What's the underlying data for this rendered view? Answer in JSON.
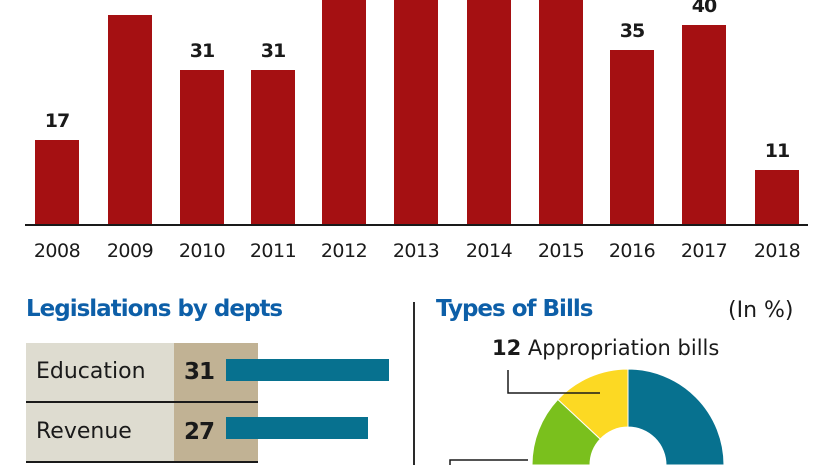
{
  "chart_data": [
    {
      "type": "bar",
      "title": "",
      "xlabel": "",
      "ylabel": "",
      "categories": [
        "2008",
        "2009",
        "2010",
        "2011",
        "2012",
        "2013",
        "2014",
        "2015",
        "2016",
        "2017",
        "2018"
      ],
      "values": [
        17,
        42,
        31,
        31,
        null,
        null,
        null,
        null,
        35,
        40,
        11
      ],
      "value_labels": [
        "17",
        "",
        "31",
        "31",
        "",
        "",
        "",
        "",
        "35",
        "40",
        "11"
      ],
      "notes": "2009 label and 2012–2015 bars are cropped at the top of the image; 2012–2015 exceed the visible range (>44)",
      "ylim": [
        0,
        45
      ],
      "grid": false,
      "color": "#a51012"
    },
    {
      "type": "bar",
      "orientation": "horizontal",
      "title": "Legislations by depts",
      "categories": [
        "Education",
        "Revenue"
      ],
      "values": [
        31,
        27
      ],
      "color": "#07718f"
    },
    {
      "type": "pie",
      "variant": "donut",
      "title": "Types of Bills",
      "unit_label": "(In %)",
      "slices": [
        {
          "label": "Appropriation bills",
          "value": 12,
          "color": "#fcd923",
          "labelled": true
        },
        {
          "label": "",
          "value": 11,
          "color": "#7ac01d",
          "labelled": false
        },
        {
          "label": "",
          "value": null,
          "color": "#07718f",
          "labelled": false
        }
      ],
      "notes": "Only the top half of the donut is visible; only the Appropriation bills label is legible"
    }
  ],
  "dept_section": {
    "title": "Legislations by depts",
    "rows": [
      {
        "name": "Education",
        "count": "31",
        "value": 31
      },
      {
        "name": "Revenue",
        "count": "27",
        "value": 27
      }
    ],
    "max_value": 31
  },
  "bills_section": {
    "title": "Types of Bills",
    "unit": "(In %)",
    "appropriation_value": "12",
    "appropriation_label": "Appropriation bills"
  }
}
